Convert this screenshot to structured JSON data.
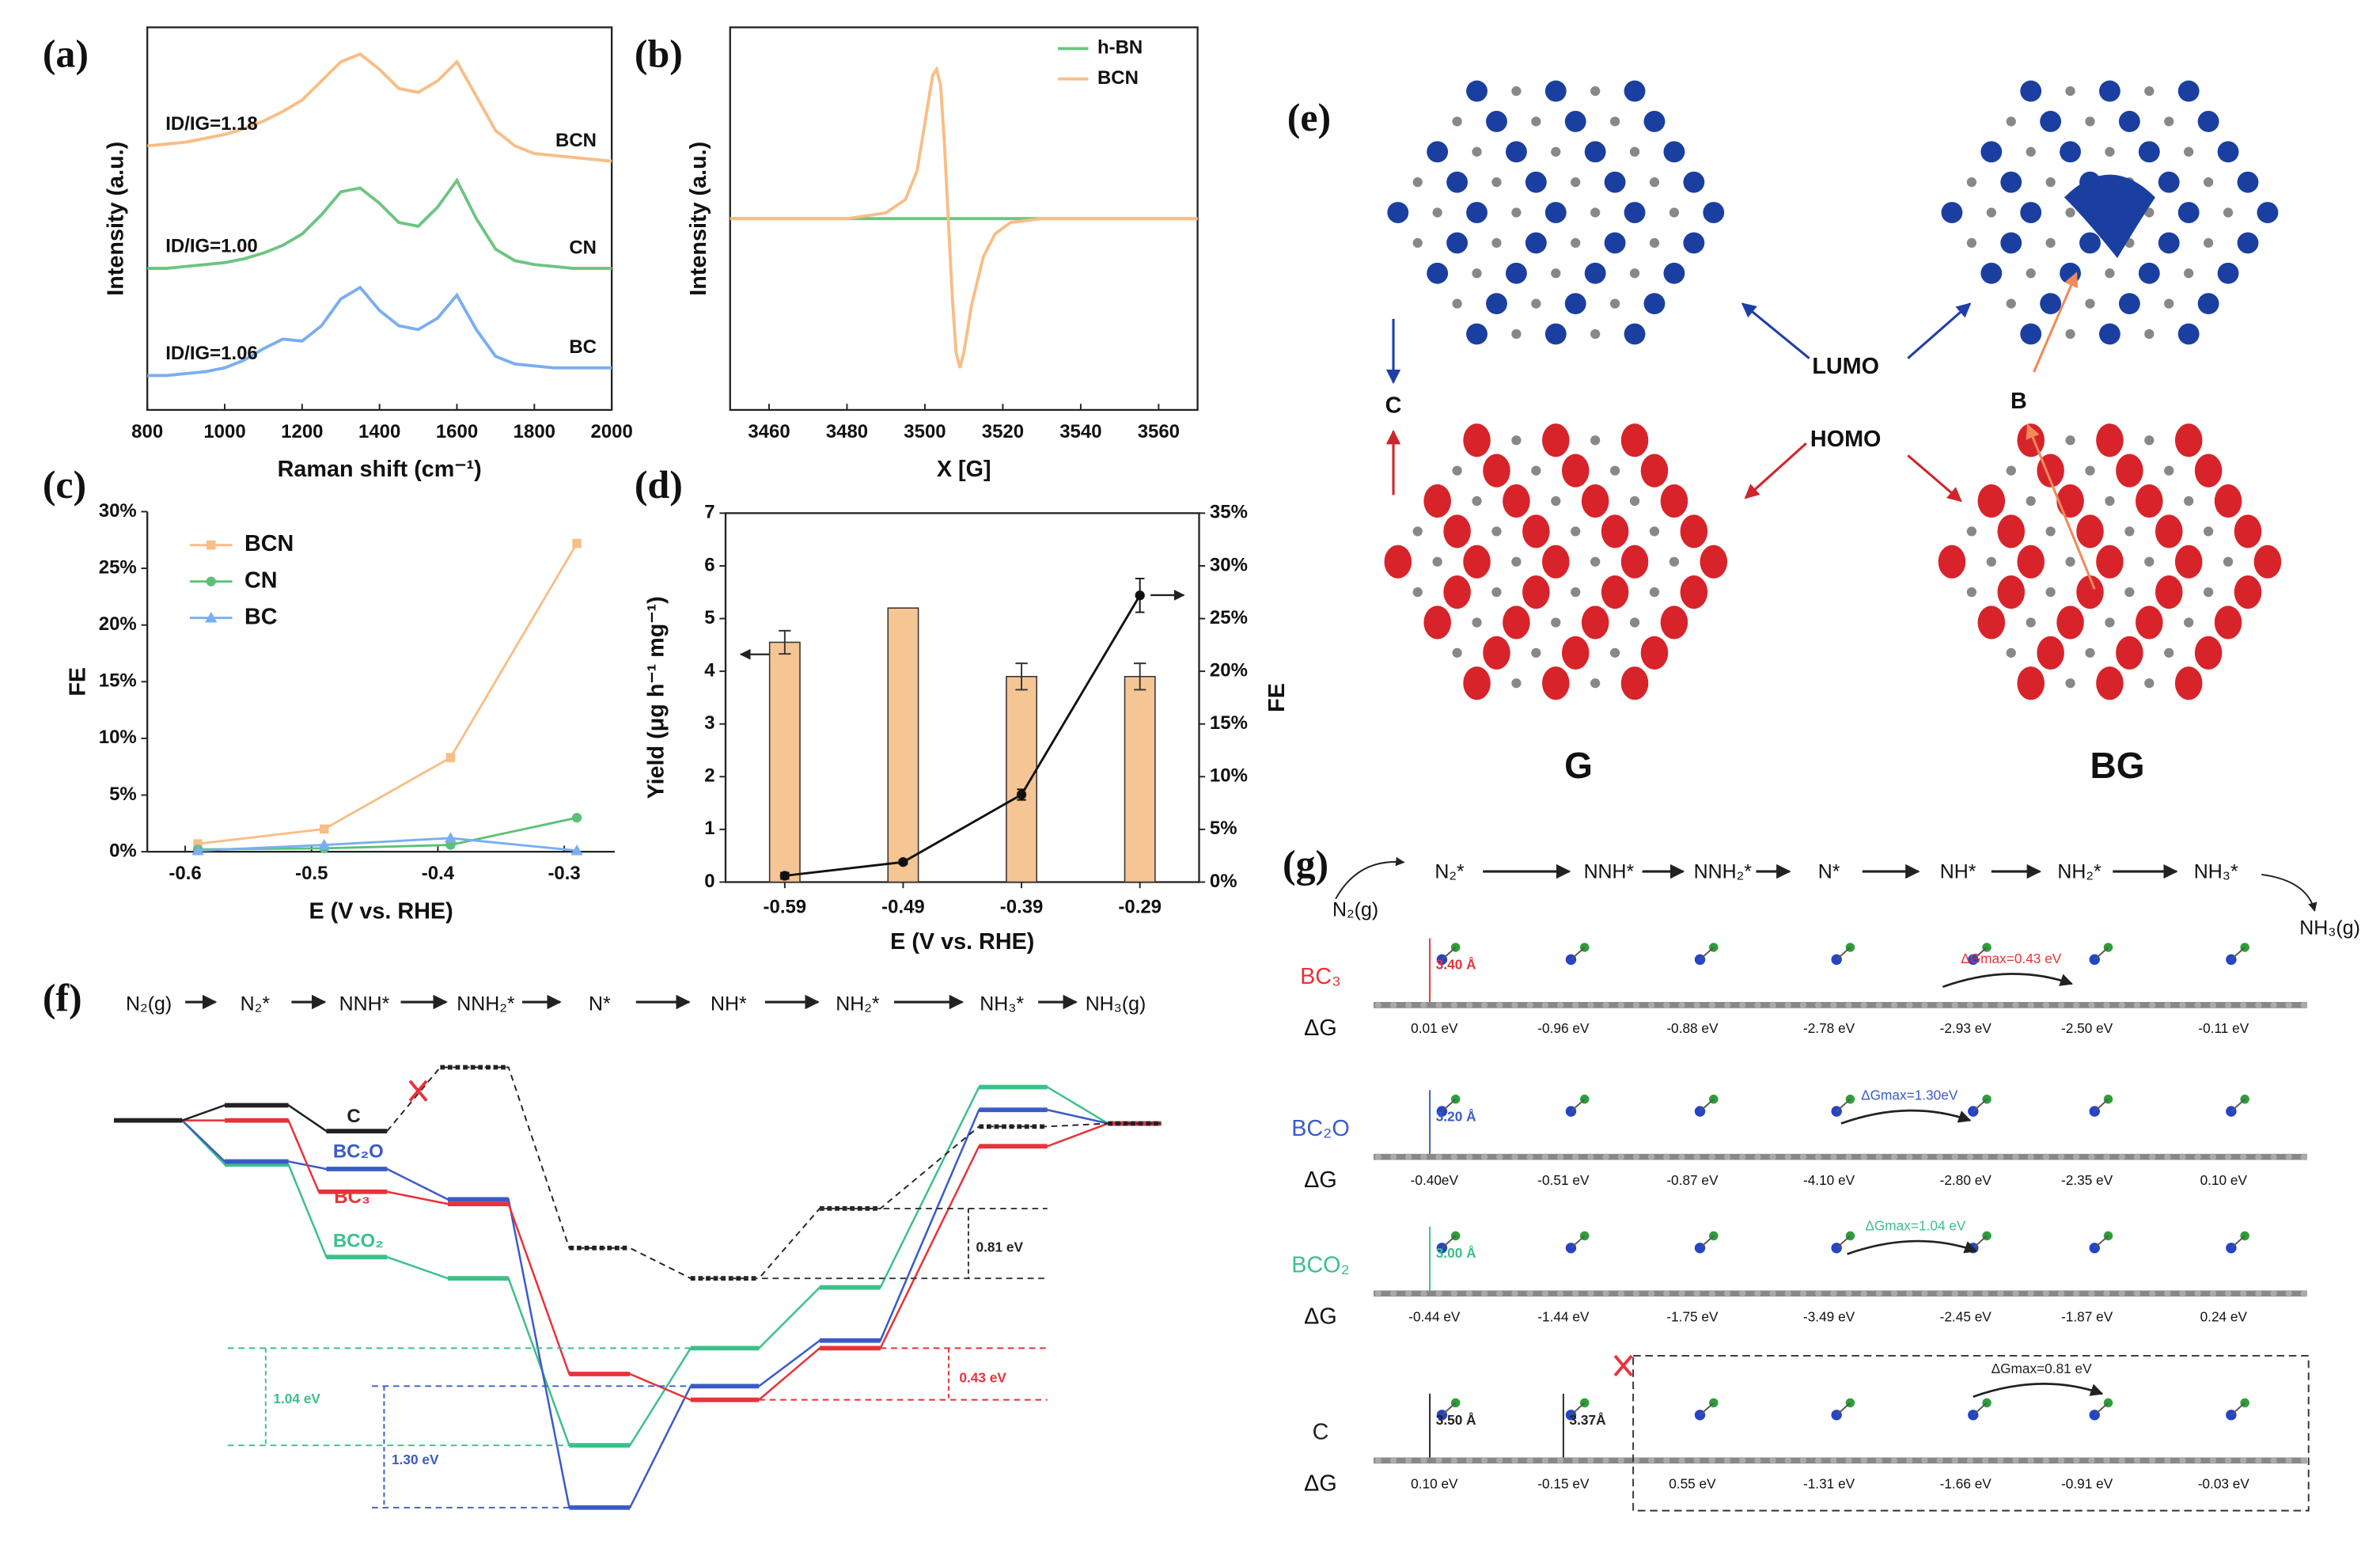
{
  "panel_labels": [
    "(a)",
    "(b)",
    "(c)",
    "(d)",
    "(e)",
    "(f)",
    "(g)"
  ],
  "chart_data": [
    {
      "type": "line",
      "x_label": "Raman shift (cm⁻¹)",
      "y_label": "Intensity (a.u.)",
      "xlim": [
        800,
        2000
      ],
      "xticks": [
        800,
        1000,
        1200,
        1400,
        1600,
        1800,
        2000
      ],
      "ylim": [
        0,
        10
      ],
      "legend": "inline",
      "x": [
        800,
        850,
        900,
        950,
        1000,
        1050,
        1100,
        1150,
        1200,
        1250,
        1300,
        1350,
        1400,
        1450,
        1500,
        1550,
        1600,
        1650,
        1700,
        1750,
        1800,
        1850,
        1900,
        1950,
        2000
      ],
      "series": [
        {
          "name": "BCN",
          "color": "#f9bd86",
          "values": [
            6.9,
            6.95,
            7.0,
            7.1,
            7.2,
            7.35,
            7.55,
            7.8,
            8.1,
            8.6,
            9.1,
            9.3,
            8.9,
            8.4,
            8.3,
            8.6,
            9.1,
            8.2,
            7.3,
            6.9,
            6.7,
            6.65,
            6.6,
            6.55,
            6.5
          ]
        },
        {
          "name": "CN",
          "color": "#6cc581",
          "values": [
            3.7,
            3.7,
            3.75,
            3.8,
            3.85,
            3.95,
            4.1,
            4.3,
            4.6,
            5.1,
            5.7,
            5.8,
            5.4,
            4.9,
            4.8,
            5.3,
            6.0,
            5.0,
            4.2,
            3.9,
            3.8,
            3.75,
            3.7,
            3.7,
            3.7
          ]
        },
        {
          "name": "BC",
          "color": "#7aaef0",
          "values": [
            0.9,
            0.9,
            0.95,
            1.0,
            1.1,
            1.3,
            1.6,
            1.85,
            1.8,
            2.2,
            2.9,
            3.2,
            2.6,
            2.2,
            2.1,
            2.4,
            3.0,
            2.1,
            1.4,
            1.2,
            1.15,
            1.1,
            1.1,
            1.1,
            1.1
          ]
        }
      ],
      "annotations": [
        "ID/IG=1.18",
        "ID/IG=1.00",
        "ID/IG=1.06"
      ]
    },
    {
      "type": "line",
      "x_label": "X [G]",
      "y_label": "Intensity (a.u.)",
      "xlim": [
        3450,
        3570
      ],
      "xticks": [
        3460,
        3480,
        3500,
        3520,
        3540,
        3560
      ],
      "ylim": [
        -1,
        1
      ],
      "legend": "upper right",
      "series": [
        {
          "name": "h-BN",
          "color": "#6cc581",
          "x": [
            3450,
            3570
          ],
          "values": [
            0,
            0
          ]
        },
        {
          "name": "BCN",
          "color": "#f9bd86",
          "x": [
            3450,
            3480,
            3490,
            3495,
            3498,
            3500,
            3502,
            3503,
            3504,
            3505,
            3506,
            3507,
            3508,
            3509,
            3510,
            3512,
            3515,
            3518,
            3522,
            3530,
            3570
          ],
          "values": [
            0,
            0,
            0.03,
            0.1,
            0.25,
            0.5,
            0.75,
            0.78,
            0.7,
            0.4,
            0,
            -0.4,
            -0.7,
            -0.78,
            -0.7,
            -0.45,
            -0.2,
            -0.08,
            -0.02,
            0,
            0
          ]
        }
      ]
    },
    {
      "type": "line",
      "x_label": "E (V vs. RHE)",
      "y_label": "FE",
      "xlim": [
        -0.63,
        -0.26
      ],
      "xticks": [
        -0.6,
        -0.5,
        -0.4,
        -0.3
      ],
      "ylim": [
        0,
        30
      ],
      "yticks": [
        {
          "value": 0,
          "label": "0%"
        },
        {
          "value": 5,
          "label": "5%"
        },
        {
          "value": 10,
          "label": "10%"
        },
        {
          "value": 15,
          "label": "15%"
        },
        {
          "value": 20,
          "label": "20%"
        },
        {
          "value": 25,
          "label": "25%"
        },
        {
          "value": 30,
          "label": "30%"
        }
      ],
      "legend": "upper left",
      "x": [
        -0.59,
        -0.49,
        -0.39,
        -0.29
      ],
      "series": [
        {
          "name": "BCN",
          "color": "#f9bd86",
          "marker": "square",
          "values": [
            0.7,
            2.0,
            8.3,
            27.2
          ]
        },
        {
          "name": "CN",
          "color": "#5cc177",
          "marker": "circle",
          "values": [
            0.2,
            0.3,
            0.6,
            3.0
          ]
        },
        {
          "name": "BC",
          "color": "#7aaef0",
          "marker": "triangle",
          "values": [
            0.1,
            0.6,
            1.2,
            0.1
          ]
        }
      ]
    },
    {
      "type": "combo",
      "x_label": "E (V vs. RHE)",
      "y_label": "Yield (μg h⁻¹ mg⁻¹)",
      "y2_label": "FE",
      "categories": [
        "-0.59",
        "-0.49",
        "-0.39",
        "-0.29"
      ],
      "ylim": [
        0,
        7
      ],
      "yticks": [
        0,
        1,
        2,
        3,
        4,
        5,
        6,
        7
      ],
      "y2lim": [
        0,
        35
      ],
      "y2ticks": [
        {
          "value": 0,
          "label": "0%"
        },
        {
          "value": 5,
          "label": "5%"
        },
        {
          "value": 10,
          "label": "10%"
        },
        {
          "value": 15,
          "label": "15%"
        },
        {
          "value": 20,
          "label": "20%"
        },
        {
          "value": 25,
          "label": "25%"
        },
        {
          "value": 30,
          "label": "30%"
        },
        {
          "value": 35,
          "label": "35%"
        }
      ],
      "series": [
        {
          "type": "bar",
          "color": "#f6c594",
          "values": [
            4.55,
            5.2,
            3.9,
            3.9
          ],
          "errors": [
            0.22,
            null,
            0.25,
            0.25
          ]
        },
        {
          "type": "line",
          "axis": "y2",
          "color": "#111111",
          "values": [
            0.6,
            1.9,
            8.3,
            27.2
          ],
          "errors": [
            0.3,
            0.2,
            0.5,
            1.6
          ]
        }
      ]
    }
  ],
  "panel_e": {
    "lumo": "LUMO",
    "homo": "HOMO",
    "c": "C",
    "b": "B",
    "g": "G",
    "bg": "BG"
  },
  "panel_f": {
    "steps": [
      "N₂(g)",
      "N₂*",
      "NNH*",
      "NNH₂*",
      "N*",
      "NH*",
      "NH₂*",
      "NH₃*",
      "NH₃(g)"
    ],
    "labels": [
      "C",
      "BC₂O",
      "BC₃",
      "BCO₂"
    ],
    "gaps": [
      "0.81 eV",
      "0.43 eV",
      "1.04 eV",
      "1.30 eV"
    ]
  },
  "panel_g": {
    "steps": [
      "N₂*",
      "NNH*",
      "NNH₂*",
      "N*",
      "NH*",
      "NH₂*",
      "NH₃*"
    ],
    "start": "N₂(g)",
    "end": "NH₃(g)",
    "delta_g": "ΔG",
    "rows": [
      {
        "label": "BC₃",
        "distances": [
          "3.40 Å"
        ],
        "max": "ΔGmax=0.43 eV",
        "energies": [
          "0.01 eV",
          "-0.96 eV",
          "-0.88 eV",
          "-2.78 eV",
          "-2.93 eV",
          "-2.50 eV",
          "-0.11 eV"
        ]
      },
      {
        "label": "BC₂O",
        "distances": [
          "3.20 Å"
        ],
        "max": "ΔGmax=1.30eV",
        "energies": [
          "-0.40eV",
          "-0.51 eV",
          "-0.87 eV",
          "-4.10 eV",
          "-2.80 eV",
          "-2.35 eV",
          "0.10 eV"
        ]
      },
      {
        "label": "BCO₂",
        "distances": [
          "3.00 Å"
        ],
        "max": "ΔGmax=1.04 eV",
        "energies": [
          "-0.44 eV",
          "-1.44 eV",
          "-1.75 eV",
          "-3.49 eV",
          "-2.45 eV",
          "-1.87 eV",
          "0.24 eV"
        ]
      },
      {
        "label": "C",
        "distances": [
          "3.50 Å",
          "3.37Å"
        ],
        "max": "ΔGmax=0.81 eV",
        "energies": [
          "0.10 eV",
          "-0.15 eV",
          "0.55 eV",
          "-1.31 eV",
          "-1.66 eV",
          "-0.91 eV",
          "-0.03 eV"
        ]
      }
    ]
  }
}
